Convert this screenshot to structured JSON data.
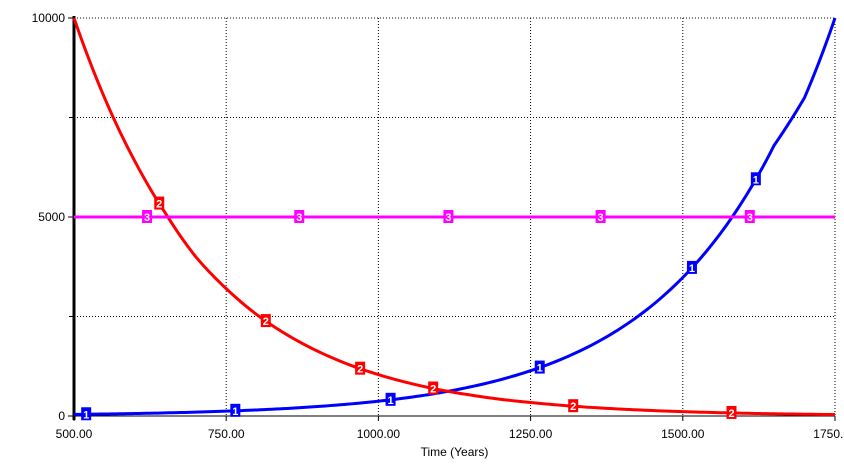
{
  "chart_data": {
    "type": "line",
    "xlabel": "Time (Years)",
    "ylabel": "",
    "xlim": [
      500,
      1750
    ],
    "ylim": [
      0,
      10000
    ],
    "x_ticks": [
      500,
      750,
      1000,
      1250,
      1500,
      1750
    ],
    "x_tick_labels": [
      "500.00",
      "750.00",
      "1000.00",
      "1250.00",
      "1500.00",
      "1750.00"
    ],
    "y_ticks": [
      0,
      5000,
      10000
    ],
    "y_tick_labels": [
      "0",
      "5000",
      "10000"
    ],
    "y_minor_ticks": [
      2500,
      7500
    ],
    "grid": true,
    "series": [
      {
        "marker": "1",
        "color": "#0000ff",
        "x": [
          500,
          550,
          600,
          650,
          700,
          750,
          800,
          850,
          900,
          950,
          1000,
          1050,
          1100,
          1150,
          1200,
          1250,
          1300,
          1350,
          1400,
          1450,
          1500,
          1550,
          1600,
          1650,
          1700,
          1750
        ],
        "values": [
          40,
          50,
          62,
          78,
          97,
          122,
          152,
          190,
          238,
          298,
          372,
          465,
          582,
          728,
          910,
          1138,
          1423,
          1780,
          2226,
          2783,
          3480,
          4351,
          5440,
          6800,
          8000,
          10000
        ],
        "marker_x": [
          520,
          765,
          1020,
          1265,
          1515,
          1620
        ]
      },
      {
        "marker": "2",
        "color": "#ff0000",
        "x": [
          500,
          550,
          600,
          650,
          700,
          750,
          800,
          850,
          900,
          950,
          1000,
          1050,
          1100,
          1150,
          1200,
          1250,
          1300,
          1350,
          1400,
          1450,
          1500,
          1550,
          1600,
          1650,
          1700,
          1750
        ],
        "values": [
          10000,
          8000,
          6400,
          5100,
          4000,
          3200,
          2550,
          2040,
          1630,
          1300,
          1040,
          830,
          660,
          530,
          420,
          340,
          270,
          215,
          172,
          137,
          110,
          88,
          70,
          56,
          45,
          36
        ],
        "marker_x": [
          640,
          815,
          970,
          1090,
          1320,
          1580
        ]
      },
      {
        "marker": "3",
        "color": "#ff00ff",
        "x": [
          500,
          1750
        ],
        "values": [
          5000,
          5000
        ],
        "marker_x": [
          620,
          870,
          1115,
          1365,
          1610
        ]
      }
    ]
  }
}
